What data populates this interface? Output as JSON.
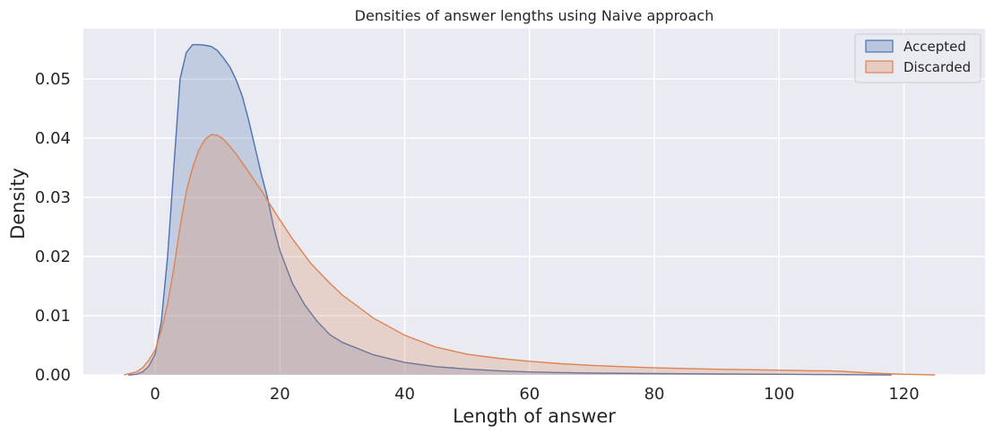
{
  "chart_data": {
    "type": "area",
    "title": "Densities of answer lengths using Naive approach",
    "xlabel": "Length of answer",
    "ylabel": "Density",
    "xlim": [
      -11.5,
      133
    ],
    "ylim": [
      0,
      0.0585
    ],
    "x_ticks": [
      0,
      20,
      40,
      60,
      80,
      100,
      120
    ],
    "y_ticks": [
      0.0,
      0.01,
      0.02,
      0.03,
      0.04,
      0.05
    ],
    "y_tick_labels": [
      "0.00",
      "0.01",
      "0.02",
      "0.03",
      "0.04",
      "0.05"
    ],
    "grid": true,
    "legend_position": "top-right",
    "series": [
      {
        "name": "Accepted",
        "color": "#4C72B0",
        "x": [
          -4.3,
          -3,
          -2,
          -1,
          0,
          1,
          2,
          3,
          4,
          5,
          6,
          7,
          8,
          9,
          10,
          11,
          12,
          13,
          14,
          15,
          16,
          17,
          18,
          19,
          20,
          22,
          24,
          26,
          28,
          30,
          35,
          40,
          45,
          50,
          55,
          60,
          65,
          70,
          80,
          90,
          100,
          110,
          118
        ],
        "y": [
          0.0,
          0.0001,
          0.0005,
          0.0015,
          0.0035,
          0.009,
          0.02,
          0.035,
          0.05,
          0.0545,
          0.0558,
          0.0558,
          0.0557,
          0.0555,
          0.0548,
          0.0535,
          0.052,
          0.0498,
          0.047,
          0.043,
          0.0385,
          0.034,
          0.03,
          0.025,
          0.021,
          0.0155,
          0.0118,
          0.009,
          0.0068,
          0.0055,
          0.0034,
          0.0021,
          0.0014,
          0.001,
          0.0007,
          0.0005,
          0.0004,
          0.0003,
          0.00022,
          0.00015,
          0.0001,
          5e-05,
          0.0
        ]
      },
      {
        "name": "Discarded",
        "color": "#DD8452",
        "x": [
          -5,
          -3,
          -2,
          -1,
          0,
          1,
          2,
          3,
          4,
          5,
          6,
          7,
          8,
          9,
          10,
          11,
          12,
          13,
          14,
          15,
          16,
          17,
          18,
          20,
          22,
          25,
          28,
          30,
          35,
          40,
          45,
          50,
          55,
          60,
          65,
          70,
          75,
          80,
          90,
          100,
          105,
          108,
          110,
          115,
          120,
          125
        ],
        "y": [
          0.0,
          0.0005,
          0.0012,
          0.0025,
          0.0042,
          0.0075,
          0.012,
          0.018,
          0.025,
          0.031,
          0.035,
          0.038,
          0.0398,
          0.0406,
          0.0405,
          0.0398,
          0.0386,
          0.0373,
          0.0358,
          0.0343,
          0.0327,
          0.0312,
          0.0295,
          0.0262,
          0.023,
          0.0188,
          0.0155,
          0.0135,
          0.0096,
          0.0067,
          0.0047,
          0.0035,
          0.0028,
          0.0023,
          0.0019,
          0.0016,
          0.0014,
          0.0012,
          0.00095,
          0.0008,
          0.0007,
          0.0007,
          0.0006,
          0.0003,
          0.0001,
          0.0
        ]
      }
    ]
  }
}
